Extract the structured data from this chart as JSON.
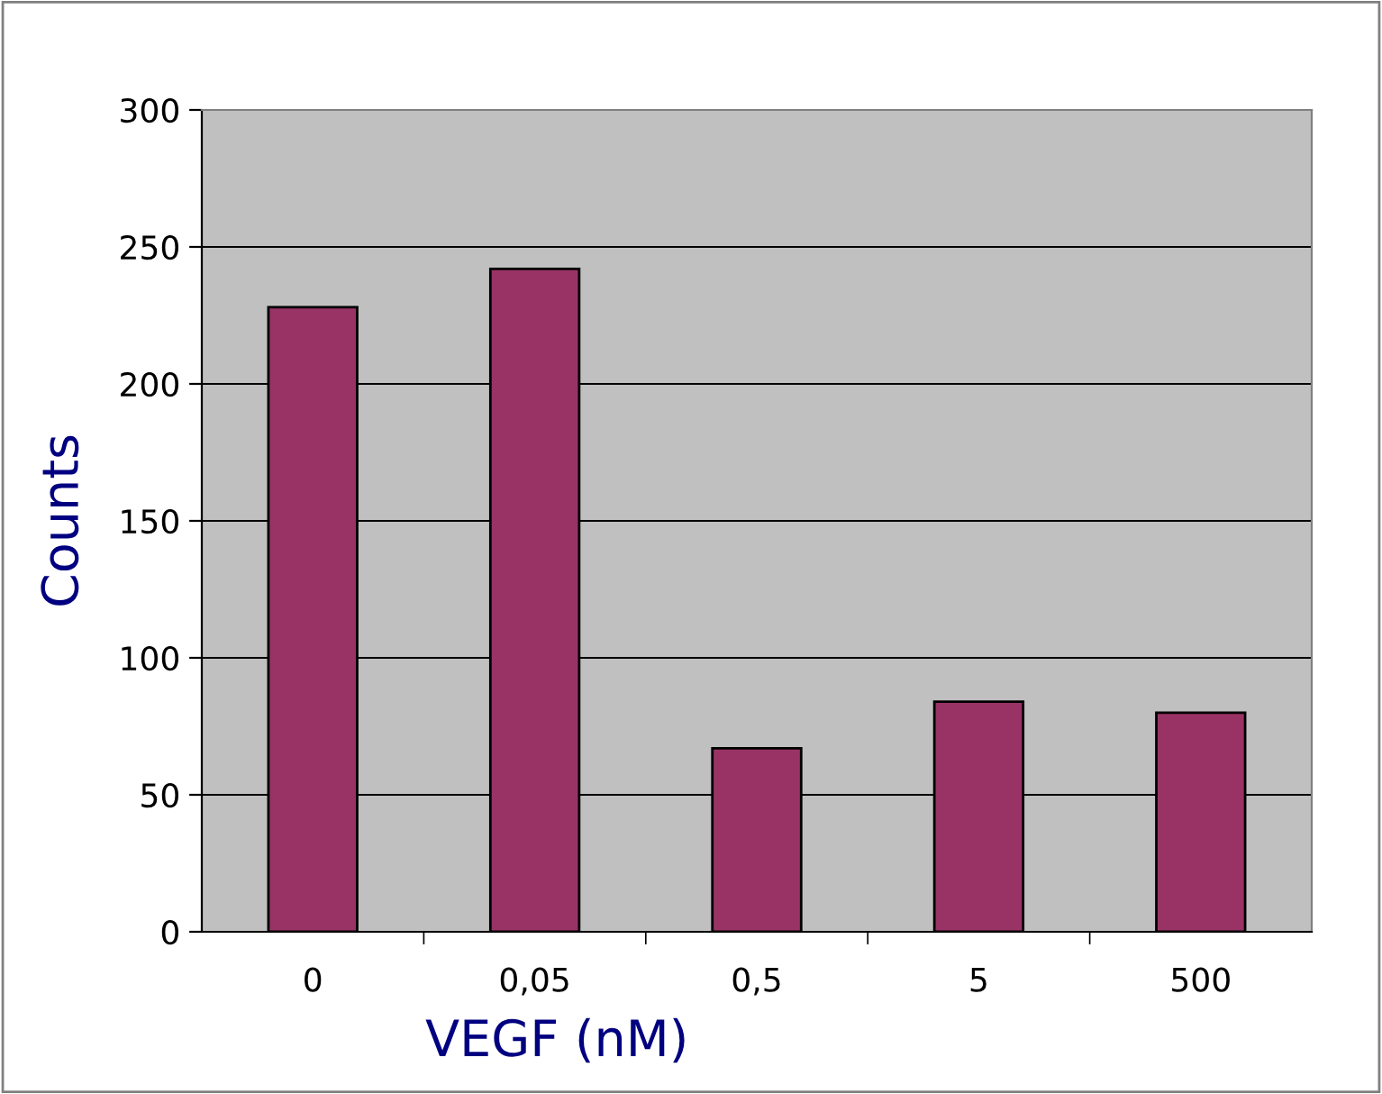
{
  "chart_data": {
    "type": "bar",
    "xlabel": "VEGF (nM)",
    "ylabel": "Counts",
    "categories": [
      "0",
      "0,05",
      "0,5",
      "5",
      "500"
    ],
    "values": [
      228,
      242,
      67,
      84,
      80
    ],
    "color": "#993366",
    "ylim": [
      0,
      300
    ],
    "yticks": [
      0,
      50,
      100,
      150,
      200,
      250,
      300
    ],
    "grid": "y",
    "legend": false
  }
}
